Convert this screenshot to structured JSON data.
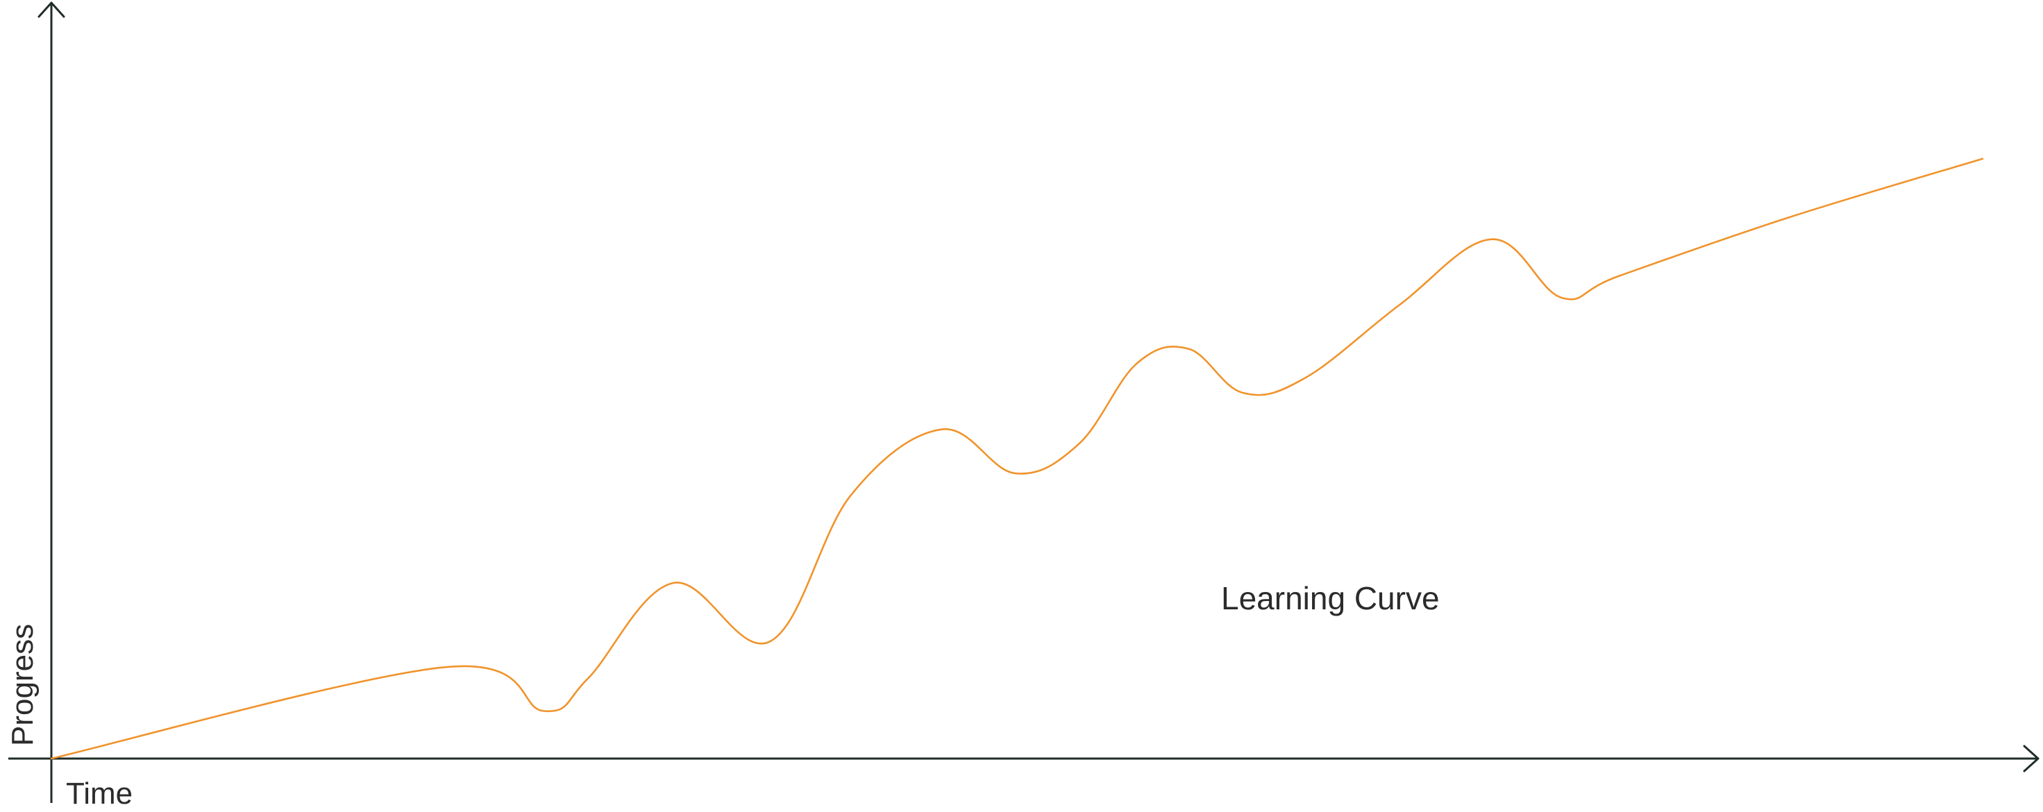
{
  "chart_data": {
    "type": "line",
    "title": "",
    "xlabel": "Time",
    "ylabel": "Progress",
    "grid": false,
    "xlim": [
      0,
      100
    ],
    "ylim": [
      0,
      100
    ],
    "annotations": [
      {
        "text": "Learning Curve",
        "x": 60.8,
        "y": 21.3
      }
    ],
    "series": [
      {
        "color": "#f0932b",
        "x": [
          0,
          20.4,
          25.5,
          27.8,
          32.2,
          37.2,
          41.4,
          46.1,
          49.9,
          53.2,
          56.2,
          58.9,
          61.7,
          64.9,
          69.8,
          74.6,
          78.2,
          81.2,
          90.0,
          100.0
        ],
        "y": [
          0,
          12.5,
          6.5,
          11,
          24,
          16,
          36,
          45,
          39,
          43,
          54,
          56,
          50,
          52,
          62,
          71,
          63,
          66,
          74,
          82
        ]
      }
    ]
  }
}
